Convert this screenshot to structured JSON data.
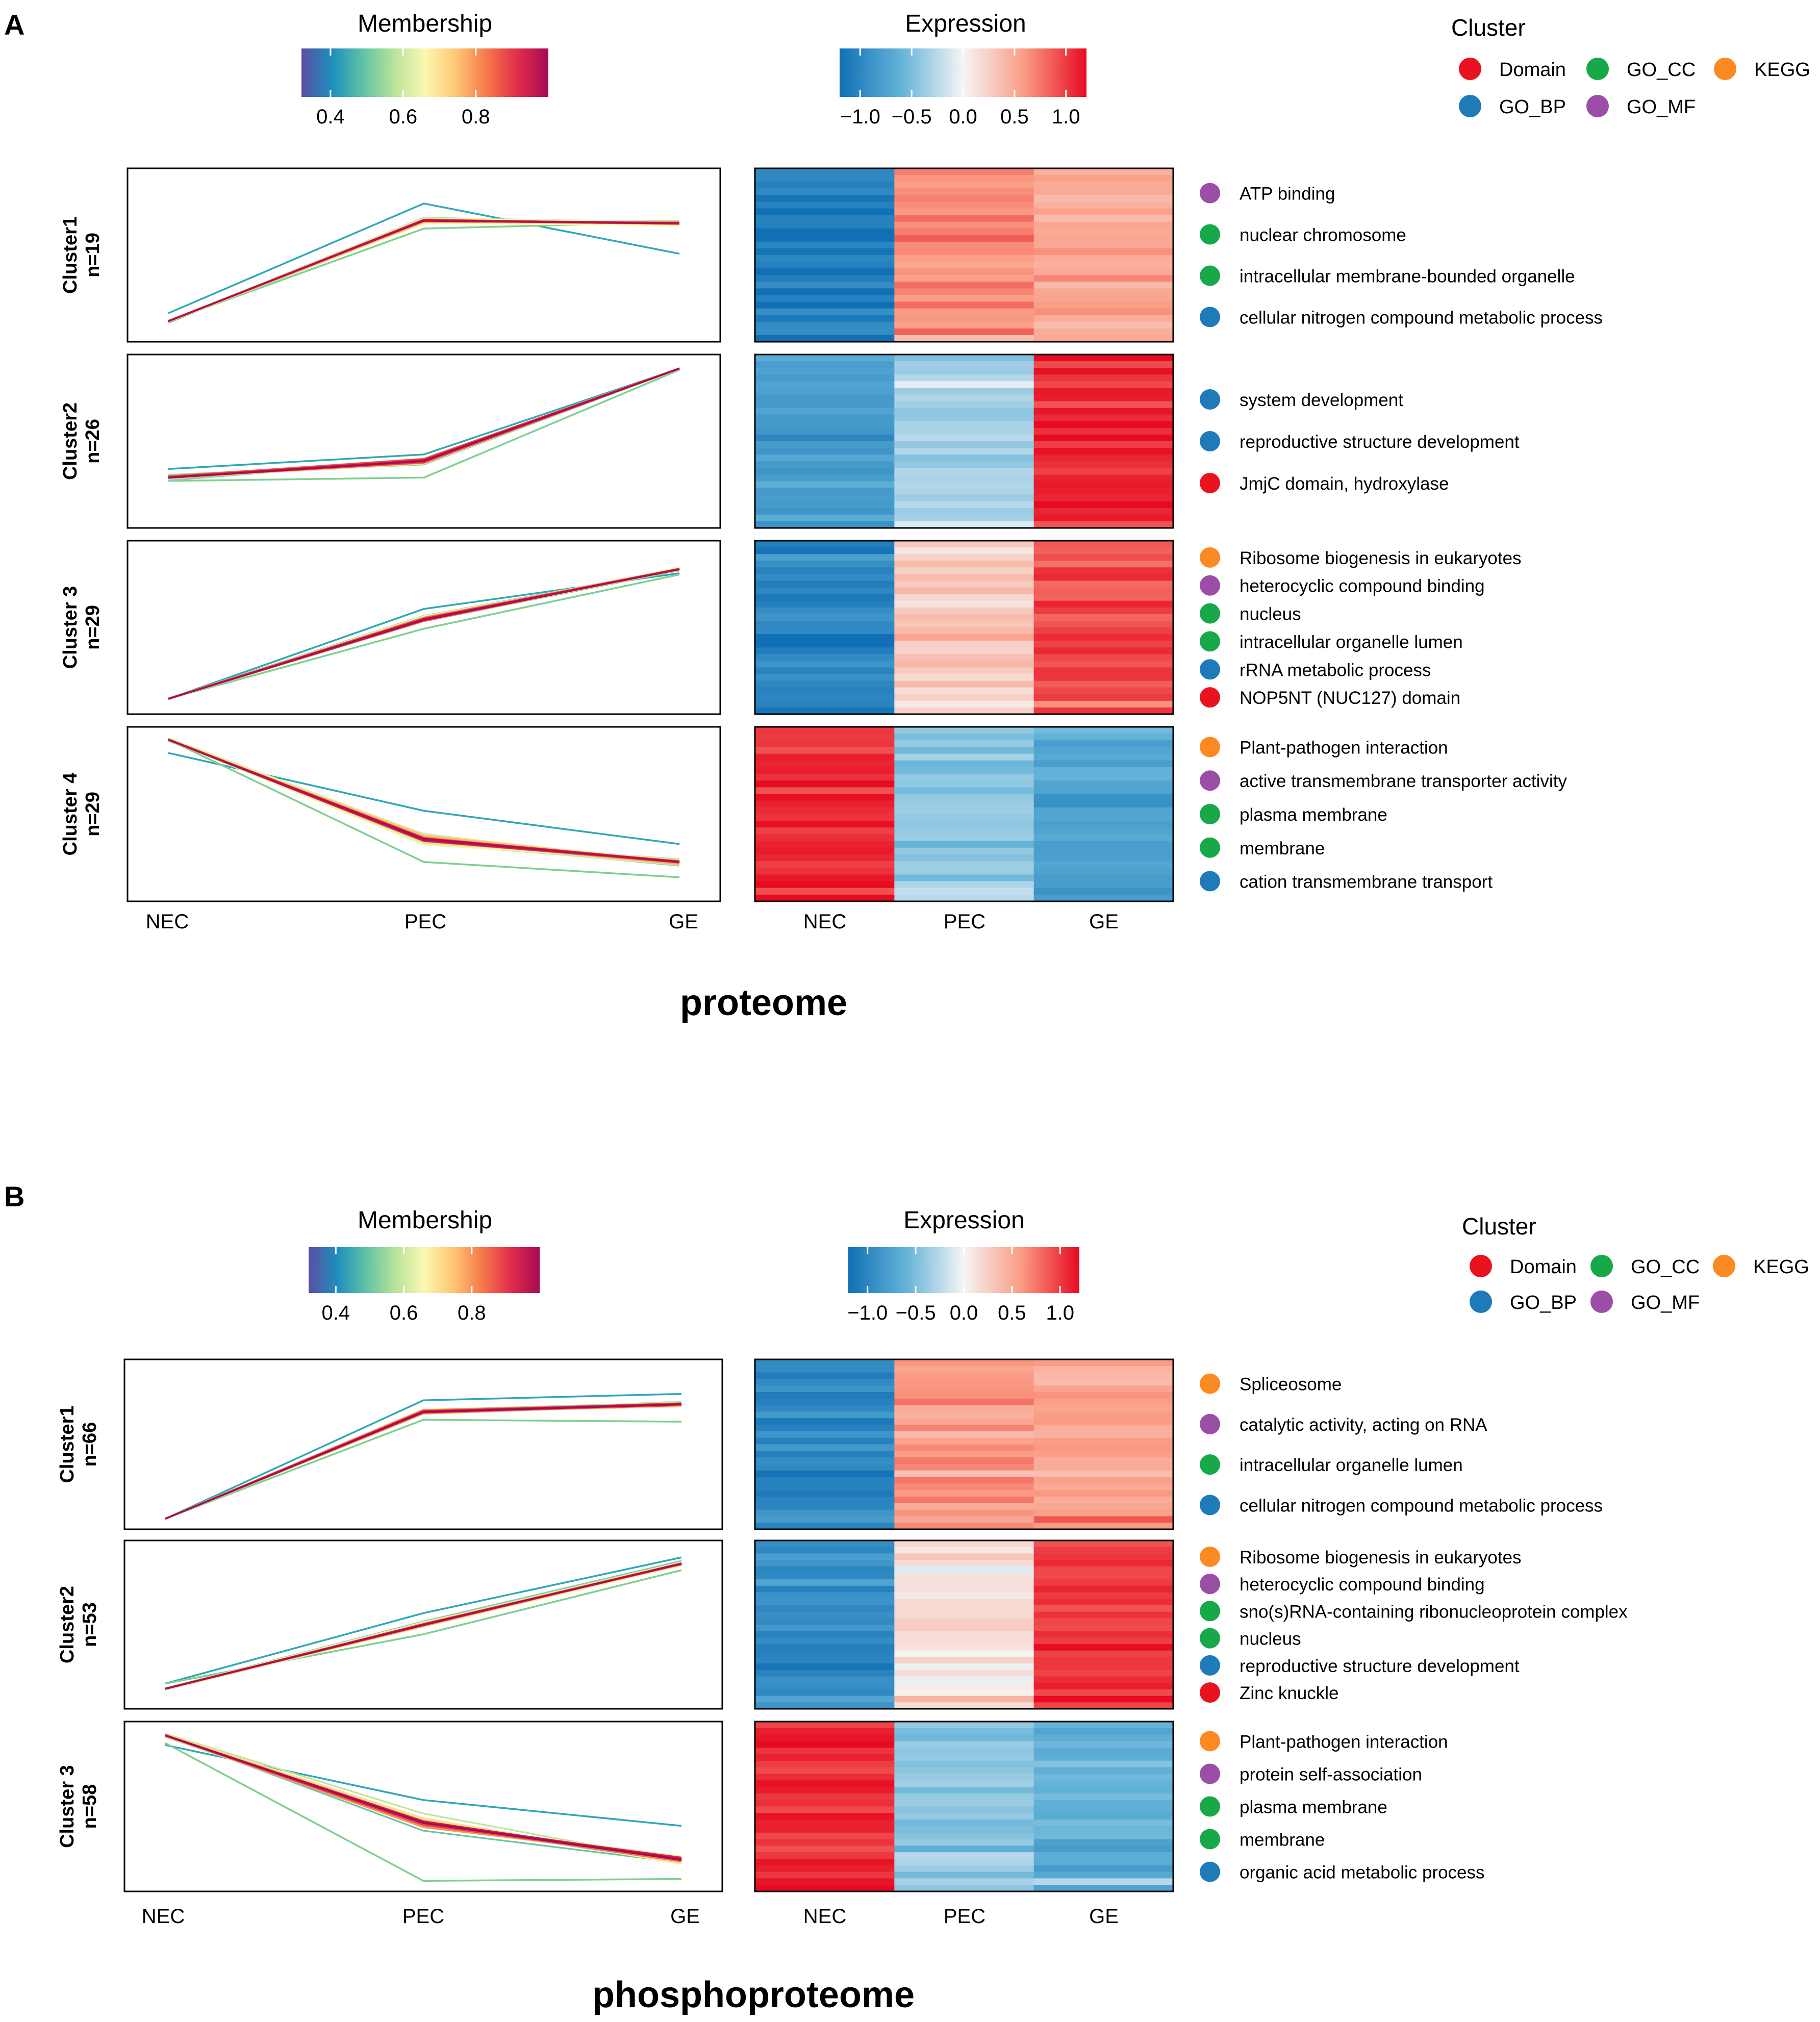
{
  "figure": {
    "colors": {
      "Domain": "#e8131f",
      "GO_CC": "#17a84a",
      "KEGG": "#fb8a23",
      "GO_BP": "#1e7ab8",
      "GO_MF": "#9b4ea6",
      "heat_low": "#1170b5",
      "heat_mid": "#f6f6f6",
      "heat_high": "#e60b22"
    },
    "membership_gradient": [
      "#5a4ea3",
      "#1e8fbd",
      "#60c3a5",
      "#b8e39a",
      "#fbf8b0",
      "#fdc775",
      "#f67a4a",
      "#e22c4a",
      "#a50b54"
    ],
    "expression_gradient": [
      "#1170b5",
      "#64b3d8",
      "#f5f5f5",
      "#fa9b83",
      "#e60b22"
    ]
  },
  "panels": [
    {
      "letter": "A",
      "title": "proteome",
      "membership_legend": {
        "title": "Membership",
        "ticks": [
          {
            "v": 0.4,
            "label": "0.4"
          },
          {
            "v": 0.6,
            "label": "0.6"
          },
          {
            "v": 0.8,
            "label": "0.8"
          }
        ],
        "range": [
          0.32,
          1.0
        ]
      },
      "expression_legend": {
        "title": "Expression",
        "ticks": [
          {
            "v": -1,
            "label": "−1.0"
          },
          {
            "v": -0.5,
            "label": "−0.5"
          },
          {
            "v": 0,
            "label": "0.0"
          },
          {
            "v": 0.5,
            "label": "0.5"
          },
          {
            "v": 1,
            "label": "1.0"
          }
        ],
        "range": [
          -1.2,
          1.2
        ]
      },
      "cluster_legend": {
        "title": "Cluster",
        "items": [
          {
            "label": "Domain",
            "key": "Domain"
          },
          {
            "label": "GO_CC",
            "key": "GO_CC"
          },
          {
            "label": "KEGG",
            "key": "KEGG"
          },
          {
            "label": "GO_BP",
            "key": "GO_BP"
          },
          {
            "label": "GO_MF",
            "key": "GO_MF"
          }
        ]
      },
      "x_labels": [
        "NEC",
        "PEC",
        "GE"
      ],
      "clusters": [
        {
          "name": "Cluster1",
          "n": "n=19",
          "profile": [
            -1.0,
            0.52,
            0.48
          ],
          "spread": [
            0.03,
            0.09,
            0.06
          ],
          "outliers": [
            [
              -0.88,
              0.78,
              0.02
            ],
            [
              -1.0,
              0.4,
              0.5
            ]
          ],
          "heat": [
            -1.1,
            0.62,
            0.55
          ],
          "terms": [
            {
              "label": "ATP binding",
              "cat": "GO_MF"
            },
            {
              "label": "nuclear chromosome",
              "cat": "GO_CC"
            },
            {
              "label": "intracellular membrane-bounded organelle",
              "cat": "GO_CC"
            },
            {
              "label": "cellular nitrogen compound metabolic process",
              "cat": "GO_BP"
            }
          ]
        },
        {
          "name": "Cluster2",
          "n": "n=26",
          "profile": [
            -0.55,
            -0.3,
            1.1
          ],
          "spread": [
            0.07,
            0.12,
            0.02
          ],
          "outliers": [
            [
              -0.42,
              -0.2,
              1.1
            ],
            [
              -0.6,
              -0.55,
              1.08
            ]
          ],
          "heat": [
            -0.8,
            -0.3,
            1.1
          ],
          "terms": [
            {
              "label": "system development",
              "cat": "GO_BP"
            },
            {
              "label": "reproductive structure development",
              "cat": "GO_BP"
            },
            {
              "label": "JmjC domain, hydroxylase",
              "cat": "Domain"
            }
          ]
        },
        {
          "name": "Cluster 3",
          "n": "n=29",
          "profile": [
            -1.08,
            0.12,
            0.88
          ],
          "spread": [
            0.02,
            0.12,
            0.05
          ],
          "outliers": [
            [
              -1.08,
              0.28,
              0.82
            ],
            [
              -1.08,
              -0.02,
              0.8
            ]
          ],
          "heat": [
            -1.0,
            0.3,
            0.92
          ],
          "terms": [
            {
              "label": "Ribosome biogenesis in eukaryotes",
              "cat": "KEGG"
            },
            {
              "label": "heterocyclic compound binding",
              "cat": "GO_MF"
            },
            {
              "label": "nucleus",
              "cat": "GO_CC"
            },
            {
              "label": "intracellular organelle lumen",
              "cat": "GO_CC"
            },
            {
              "label": "rRNA metabolic process",
              "cat": "GO_BP"
            },
            {
              "label": "NOP5NT (NUC127) domain",
              "cat": "Domain"
            }
          ]
        },
        {
          "name": "Cluster 4",
          "n": "n=29",
          "profile": [
            1.12,
            -0.38,
            -0.72
          ],
          "spread": [
            0.04,
            0.18,
            0.1
          ],
          "outliers": [
            [
              0.92,
              0.05,
              -0.45
            ],
            [
              1.12,
              -0.72,
              -0.95
            ]
          ],
          "heat": [
            1.05,
            -0.45,
            -0.72
          ],
          "terms": [
            {
              "label": "Plant-pathogen interaction",
              "cat": "KEGG"
            },
            {
              "label": "active transmembrane transporter activity",
              "cat": "GO_MF"
            },
            {
              "label": "plasma membrane",
              "cat": "GO_CC"
            },
            {
              "label": "membrane",
              "cat": "GO_CC"
            },
            {
              "label": "cation transmembrane transport",
              "cat": "GO_BP"
            }
          ]
        }
      ]
    },
    {
      "letter": "B",
      "title": "phosphoproteome",
      "membership_legend": {
        "title": "Membership",
        "ticks": [
          {
            "v": 0.4,
            "label": "0.4"
          },
          {
            "v": 0.6,
            "label": "0.6"
          },
          {
            "v": 0.8,
            "label": "0.8"
          }
        ],
        "range": [
          0.32,
          1.0
        ]
      },
      "expression_legend": {
        "title": "Expression",
        "ticks": [
          {
            "v": -1,
            "label": "−1.0"
          },
          {
            "v": -0.5,
            "label": "−0.5"
          },
          {
            "v": 0,
            "label": "0.0"
          },
          {
            "v": 0.5,
            "label": "0.5"
          },
          {
            "v": 1,
            "label": "1.0"
          }
        ],
        "range": [
          -1.2,
          1.2
        ]
      },
      "cluster_legend": {
        "title": "Cluster",
        "items": [
          {
            "label": "Domain",
            "key": "Domain"
          },
          {
            "label": "GO_CC",
            "key": "GO_CC"
          },
          {
            "label": "KEGG",
            "key": "KEGG"
          },
          {
            "label": "GO_BP",
            "key": "GO_BP"
          },
          {
            "label": "GO_MF",
            "key": "GO_MF"
          }
        ]
      },
      "x_labels": [
        "NEC",
        "PEC",
        "GE"
      ],
      "clusters": [
        {
          "name": "Cluster1",
          "n": "n=66",
          "profile": [
            -1.15,
            0.5,
            0.62
          ],
          "spread": [
            0.01,
            0.1,
            0.08
          ],
          "outliers": [
            [
              -1.15,
              0.68,
              0.78
            ],
            [
              -1.15,
              0.38,
              0.35
            ]
          ],
          "heat": [
            -1.0,
            0.58,
            0.5
          ],
          "terms": [
            {
              "label": "Spliceosome",
              "cat": "KEGG"
            },
            {
              "label": "catalytic activity, acting on RNA",
              "cat": "GO_MF"
            },
            {
              "label": "intracellular organelle lumen",
              "cat": "GO_CC"
            },
            {
              "label": "cellular nitrogen compound metabolic process",
              "cat": "GO_BP"
            }
          ]
        },
        {
          "name": "Cluster2",
          "n": "n=53",
          "profile": [
            -1.0,
            0.0,
            0.95
          ],
          "spread": [
            0.03,
            0.1,
            0.06
          ],
          "outliers": [
            [
              -0.92,
              0.18,
              1.05
            ],
            [
              -0.92,
              -0.15,
              0.85
            ]
          ],
          "heat": [
            -0.95,
            0.12,
            1.0
          ],
          "terms": [
            {
              "label": "Ribosome biogenesis in eukaryotes",
              "cat": "KEGG"
            },
            {
              "label": "heterocyclic compound binding",
              "cat": "GO_MF"
            },
            {
              "label": "sno(s)RNA-containing ribonucleoprotein complex",
              "cat": "GO_CC"
            },
            {
              "label": "nucleus",
              "cat": "GO_CC"
            },
            {
              "label": "reproductive structure development",
              "cat": "GO_BP"
            },
            {
              "label": "Zinc knuckle",
              "cat": "Domain"
            }
          ]
        },
        {
          "name": "Cluster 3",
          "n": "n=58",
          "profile": [
            1.1,
            -0.25,
            -0.82
          ],
          "spread": [
            0.04,
            0.22,
            0.15
          ],
          "outliers": [
            [
              0.95,
              0.1,
              -0.3
            ],
            [
              0.98,
              -1.15,
              -1.12
            ]
          ],
          "heat": [
            1.05,
            -0.42,
            -0.62
          ],
          "terms": [
            {
              "label": "Plant-pathogen interaction",
              "cat": "KEGG"
            },
            {
              "label": "protein self-association",
              "cat": "GO_MF"
            },
            {
              "label": "plasma membrane",
              "cat": "GO_CC"
            },
            {
              "label": "membrane",
              "cat": "GO_CC"
            },
            {
              "label": "organic acid metabolic process",
              "cat": "GO_BP"
            }
          ]
        }
      ]
    }
  ]
}
